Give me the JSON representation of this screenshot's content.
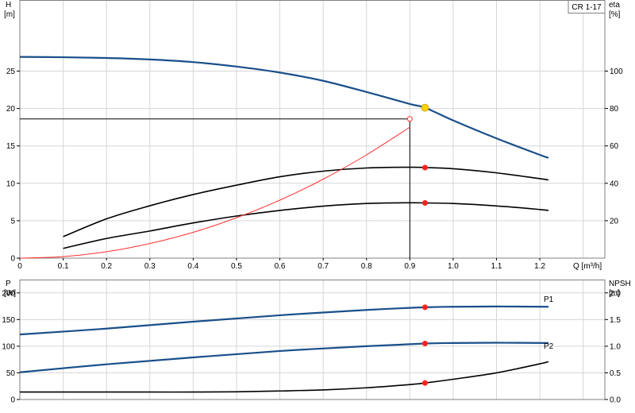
{
  "chart_data": [
    {
      "type": "line",
      "title": "CR 1-17",
      "x": {
        "label": "Q [m³/h]",
        "ticks": [
          0,
          0.1,
          0.2,
          0.3,
          0.4,
          0.5,
          0.6,
          0.7,
          0.8,
          0.9,
          1.0,
          1.1,
          1.2
        ],
        "tick_labels": [
          "0",
          "0.1",
          "0.2",
          "0.3",
          "0.4",
          "0.5",
          "0.6",
          "0.7",
          "0.8",
          "0.9",
          "1.0",
          "1.1",
          "1.2"
        ],
        "range": [
          0,
          1.35
        ]
      },
      "y_left": {
        "label_line1": "H",
        "label_line2": "[m]",
        "ticks": [
          0,
          5,
          10,
          15,
          20,
          25
        ],
        "tick_labels": [
          "0",
          "5",
          "10",
          "15",
          "20",
          "25"
        ],
        "range": [
          0,
          34.5
        ]
      },
      "y_right": {
        "label_line1": "eta",
        "label_line2": "[%]",
        "ticks": [
          20,
          40,
          60,
          80,
          100
        ],
        "tick_labels": [
          "20",
          "40",
          "60",
          "80",
          "100"
        ],
        "range": [
          0,
          138
        ]
      },
      "grid": true,
      "series": [
        {
          "name": "H",
          "axis": "left",
          "color": "#1a4f8a",
          "x": [
            0,
            0.1,
            0.2,
            0.3,
            0.4,
            0.5,
            0.6,
            0.7,
            0.8,
            0.9,
            0.935,
            1.0,
            1.1,
            1.2,
            1.22
          ],
          "y": [
            26.9,
            26.85,
            26.75,
            26.55,
            26.2,
            25.6,
            24.8,
            23.7,
            22.2,
            20.6,
            20.1,
            18.4,
            16.0,
            13.8,
            13.4
          ]
        },
        {
          "name": "eta",
          "axis": "right",
          "color": "#000000",
          "x": [
            0.1,
            0.2,
            0.3,
            0.4,
            0.5,
            0.6,
            0.7,
            0.8,
            0.9,
            0.935,
            1.0,
            1.1,
            1.2,
            1.22
          ],
          "y": [
            11.5,
            21.0,
            28.0,
            34.0,
            39.0,
            43.5,
            46.5,
            48.2,
            48.6,
            48.4,
            47.8,
            45.6,
            42.5,
            41.8
          ]
        },
        {
          "name": "eta",
          "axis": "right",
          "color": "#000000",
          "x": [
            0.1,
            0.2,
            0.3,
            0.4,
            0.5,
            0.6,
            0.7,
            0.8,
            0.9,
            0.935,
            1.0,
            1.1,
            1.2,
            1.22
          ],
          "y": [
            5.2,
            10.5,
            14.5,
            18.8,
            22.5,
            25.5,
            27.8,
            29.2,
            29.6,
            29.5,
            29.2,
            27.9,
            26.0,
            25.5
          ]
        },
        {
          "name": "",
          "axis": "left",
          "color": "#ff3030",
          "x": [
            0,
            0.1,
            0.2,
            0.3,
            0.4,
            0.5,
            0.6,
            0.7,
            0.8,
            0.9
          ],
          "y": [
            0,
            0.2,
            0.85,
            1.95,
            3.45,
            5.4,
            7.75,
            10.55,
            13.8,
            17.5
          ]
        }
      ],
      "points": [
        {
          "x": 0.935,
          "y": 20.1,
          "axis": "left",
          "color": "#ffd200"
        },
        {
          "x": 0.9,
          "y": 18.6,
          "axis": "left",
          "color": "#ff3030",
          "hollow": true
        },
        {
          "x": 0.935,
          "y": 48.4,
          "axis": "right",
          "color": "#ff2020"
        },
        {
          "x": 0.935,
          "y": 29.5,
          "axis": "right",
          "color": "#ff2020"
        }
      ],
      "reference_lines": {
        "x": 0.9,
        "y": 18.6
      }
    },
    {
      "type": "line",
      "x": {
        "ticks": [
          0,
          0.1,
          0.2,
          0.3,
          0.4,
          0.5,
          0.6,
          0.7,
          0.8,
          0.9,
          1.0,
          1.1,
          1.2
        ],
        "range": [
          0,
          1.35
        ]
      },
      "y_left": {
        "label_line1": "P",
        "label_line2": "[W]",
        "ticks": [
          0,
          50,
          100,
          150,
          200
        ],
        "tick_labels": [
          "0",
          "50",
          "100",
          "150",
          "200"
        ],
        "range": [
          0,
          225
        ]
      },
      "y_right": {
        "label_line1": "NPSH",
        "label_line2": "[m]",
        "ticks": [
          0,
          0.5,
          1.0,
          1.5,
          2.0
        ],
        "tick_labels": [
          "0.0",
          "0.5",
          "1.0",
          "1.5",
          "2.0"
        ],
        "range": [
          0,
          2.25
        ]
      },
      "grid": true,
      "series": [
        {
          "name": "P1",
          "axis": "left",
          "color": "#1a4f8a",
          "x": [
            0,
            0.2,
            0.4,
            0.6,
            0.8,
            0.935,
            1.0,
            1.1,
            1.22
          ],
          "y": [
            122,
            133,
            146,
            158,
            168,
            173,
            174,
            174.5,
            174
          ]
        },
        {
          "name": "P2",
          "axis": "left",
          "color": "#1a4f8a",
          "x": [
            0,
            0.2,
            0.4,
            0.6,
            0.8,
            0.935,
            1.0,
            1.1,
            1.22
          ],
          "y": [
            51,
            66,
            79,
            91,
            100,
            105,
            106,
            106.5,
            106
          ]
        },
        {
          "name": "NPSH",
          "axis": "right",
          "color": "#000000",
          "x": [
            0,
            0.1,
            0.2,
            0.3,
            0.4,
            0.5,
            0.6,
            0.7,
            0.8,
            0.9,
            0.935,
            1.0,
            1.1,
            1.2,
            1.22
          ],
          "y": [
            0.14,
            0.14,
            0.14,
            0.14,
            0.14,
            0.145,
            0.16,
            0.18,
            0.22,
            0.28,
            0.31,
            0.38,
            0.5,
            0.67,
            0.71
          ]
        }
      ],
      "points": [
        {
          "x": 0.935,
          "y": 173,
          "axis": "left",
          "color": "#ff2020"
        },
        {
          "x": 0.935,
          "y": 105,
          "axis": "left",
          "color": "#ff2020"
        },
        {
          "x": 0.935,
          "y": 0.31,
          "axis": "right",
          "color": "#ff2020"
        }
      ]
    }
  ]
}
